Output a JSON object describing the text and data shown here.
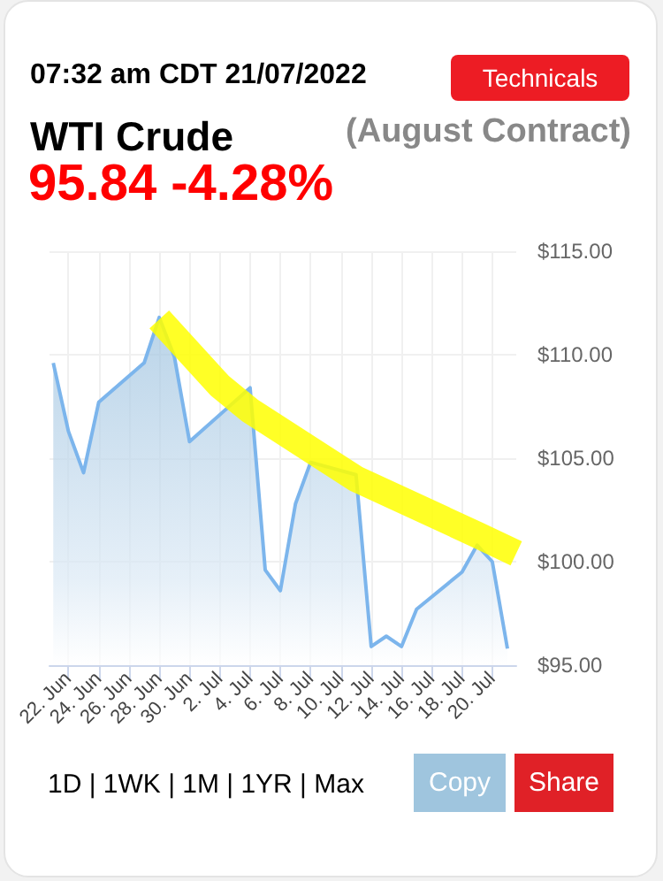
{
  "chart_data": {
    "type": "area",
    "title": "WTI Crude",
    "subtitle": "(August Contract)",
    "annotations": [
      "07:32 am CDT 21/07/2022",
      "95.84 -4.28%",
      "Technicals",
      "1D | 1WK | 1M | 1YR | Max",
      "Copy",
      "Share"
    ],
    "x": [
      "2022-06-21",
      "2022-06-22",
      "2022-06-23",
      "2022-06-24",
      "2022-06-27",
      "2022-06-28",
      "2022-06-29",
      "2022-06-30",
      "2022-07-04",
      "2022-07-05",
      "2022-07-06",
      "2022-07-07",
      "2022-07-08",
      "2022-07-11",
      "2022-07-12",
      "2022-07-13",
      "2022-07-14",
      "2022-07-15",
      "2022-07-18",
      "2022-07-19",
      "2022-07-20",
      "2022-07-21"
    ],
    "series": [
      {
        "color": "#7cb5ec",
        "values": [
          109.6,
          106.3,
          104.3,
          107.7,
          109.6,
          111.8,
          109.9,
          105.8,
          108.4,
          99.6,
          98.6,
          102.8,
          104.8,
          104.2,
          95.9,
          96.4,
          95.9,
          97.7,
          99.5,
          100.8,
          100.0,
          95.8
        ]
      },
      {
        "type": "line",
        "color": "#ffff00",
        "x": [
          "2022-06-28",
          "2022-07-02",
          "2022-07-04",
          "2022-07-11",
          "2022-07-19",
          "2022-07-21T14:00"
        ],
        "values": [
          111.7,
          108.5,
          107.3,
          104.0,
          101.3,
          100.4
        ]
      }
    ],
    "xlim": [
      "2022-06-20T18:00",
      "2022-07-21T14:00"
    ],
    "xticks": [
      {
        "value": "2022-06-22",
        "label": "22. Jun"
      },
      {
        "value": "2022-06-24",
        "label": "24. Jun"
      },
      {
        "value": "2022-06-26",
        "label": "26. Jun"
      },
      {
        "value": "2022-06-28",
        "label": "28. Jun"
      },
      {
        "value": "2022-06-30",
        "label": "30. Jun"
      },
      {
        "value": "2022-07-02",
        "label": "2. Jul"
      },
      {
        "value": "2022-07-04",
        "label": "4. Jul"
      },
      {
        "value": "2022-07-06",
        "label": "6. Jul"
      },
      {
        "value": "2022-07-08",
        "label": "8. Jul"
      },
      {
        "value": "2022-07-10",
        "label": "10. Jul"
      },
      {
        "value": "2022-07-12",
        "label": "12. Jul"
      },
      {
        "value": "2022-07-14",
        "label": "14. Jul"
      },
      {
        "value": "2022-07-16",
        "label": "16. Jul"
      },
      {
        "value": "2022-07-18",
        "label": "18. Jul"
      },
      {
        "value": "2022-07-20",
        "label": "20. Jul"
      }
    ],
    "ylim": [
      95,
      115
    ],
    "yticks": [
      {
        "value": 95,
        "label": "$95.00"
      },
      {
        "value": 100,
        "label": "$100.00"
      },
      {
        "value": 105,
        "label": "$105.00"
      },
      {
        "value": 110,
        "label": "$110.00"
      },
      {
        "value": 115,
        "label": "$115.00"
      }
    ],
    "grid": true,
    "marker": "none",
    "line_style": "solid"
  }
}
